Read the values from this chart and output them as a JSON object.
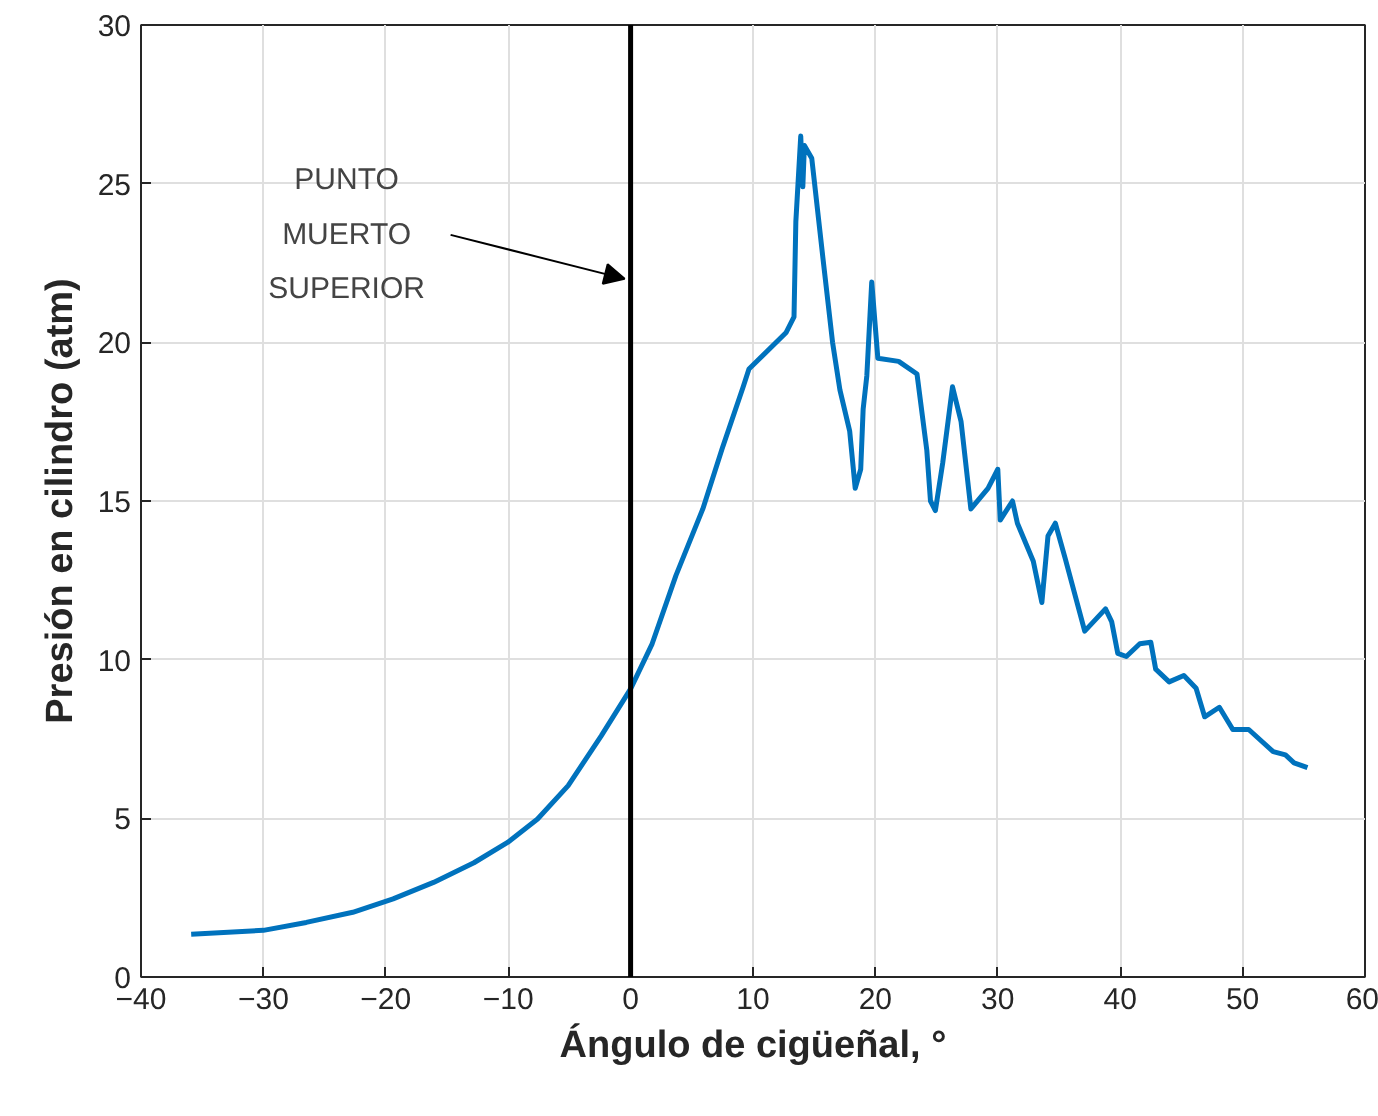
{
  "chart_data": {
    "type": "line",
    "xlabel": "Ángulo de cigüeñal, °",
    "ylabel": "Presión en cilindro (atm)",
    "xlim": [
      -40,
      60
    ],
    "xticks": [
      -40,
      -30,
      -20,
      -10,
      0,
      10,
      20,
      30,
      40,
      50,
      60
    ],
    "ylim": [
      0,
      30
    ],
    "yticks": [
      0,
      5,
      10,
      15,
      20,
      25,
      30
    ],
    "grid": true,
    "ref_lines": [
      {
        "axis": "x",
        "value": 0,
        "color": "#000000"
      }
    ],
    "annotations": [
      {
        "text": "PUNTO\nMUERTO\nSUPERIOR",
        "x": 0,
        "y": 22
      }
    ],
    "series": [
      {
        "color": "#0072bd",
        "x": [
          -35.9,
          -30,
          -26.5,
          -22.7,
          -19.4,
          -16.1,
          -12.8,
          -10.05,
          -7.6,
          -5.1,
          -2.4,
          0,
          1.76,
          3.7,
          5.9,
          7.47,
          9.2,
          9.67,
          12.69,
          13.35,
          13.5,
          13.9,
          14.07,
          14.2,
          14.8,
          15.7,
          16.5,
          17.1,
          17.9,
          18.35,
          18.8,
          19.0,
          19.3,
          19.7,
          20.2,
          21.9,
          23.4,
          24.2,
          24.5,
          24.9,
          25.5,
          26.3,
          27.0,
          27.8,
          29.2,
          30.0,
          30.2,
          31.2,
          31.6,
          32.9,
          33.6,
          34.1,
          34.7,
          35.5,
          37.1,
          38.8,
          39.3,
          39.8,
          40.5,
          41.6,
          42.5,
          42.9,
          44.0,
          45.2,
          46.2,
          46.9,
          48.1,
          49.2,
          50.5,
          52.5,
          53.5,
          54.2,
          55.3
        ],
        "values": [
          1.35,
          1.47,
          1.72,
          2.04,
          2.46,
          2.98,
          3.6,
          4.24,
          4.98,
          6.03,
          7.6,
          9.08,
          10.5,
          12.65,
          14.75,
          16.64,
          18.6,
          19.16,
          20.3,
          20.8,
          23.8,
          26.5,
          24.9,
          26.2,
          25.8,
          22.7,
          20.0,
          18.5,
          17.2,
          15.4,
          16.0,
          17.9,
          18.95,
          21.9,
          19.5,
          19.4,
          19.0,
          16.6,
          15.0,
          14.7,
          16.2,
          18.6,
          17.5,
          14.75,
          15.4,
          16.0,
          14.4,
          15.0,
          14.3,
          13.1,
          11.8,
          13.9,
          14.3,
          13.2,
          10.9,
          11.6,
          11.2,
          10.2,
          10.1,
          10.5,
          10.55,
          9.7,
          9.3,
          9.5,
          9.1,
          8.2,
          8.5,
          7.8,
          7.8,
          7.1,
          7.0,
          6.75,
          6.6
        ]
      }
    ]
  }
}
